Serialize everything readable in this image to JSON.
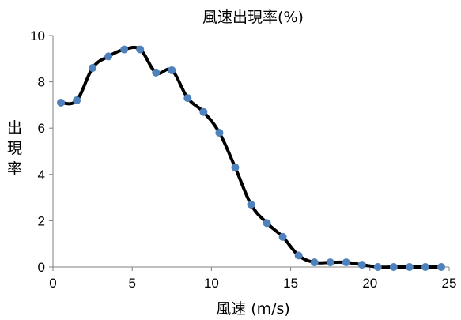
{
  "chart_data": {
    "type": "line",
    "title": "風速出現率(%)",
    "xlabel": "風速 (m/s)",
    "ylabel": "出現率",
    "xlim": [
      0,
      25
    ],
    "ylim": [
      0,
      10
    ],
    "x_ticks": [
      "0",
      "5",
      "10",
      "15",
      "20",
      "25"
    ],
    "y_ticks": [
      "0",
      "2",
      "4",
      "6",
      "8",
      "10"
    ],
    "grid": false,
    "legend": "none",
    "series": [
      {
        "x": [
          0.5,
          1.5,
          2.5,
          3.5,
          4.5,
          5.5,
          6.5,
          7.5,
          8.5,
          9.5,
          10.5,
          11.5,
          12.5,
          13.5,
          14.5,
          15.5,
          16.5,
          17.5,
          18.5,
          19.5,
          20.5,
          21.5,
          22.5,
          23.5,
          24.5
        ],
        "values": [
          7.1,
          7.2,
          8.6,
          9.1,
          9.4,
          9.4,
          8.4,
          8.5,
          7.3,
          6.7,
          5.8,
          4.3,
          2.7,
          1.9,
          1.3,
          0.5,
          0.2,
          0.2,
          0.2,
          0.1,
          0.0,
          0.0,
          0.0,
          0.0,
          0.0
        ],
        "line_color": "#000000",
        "marker_color": "#4f81bd"
      }
    ]
  }
}
